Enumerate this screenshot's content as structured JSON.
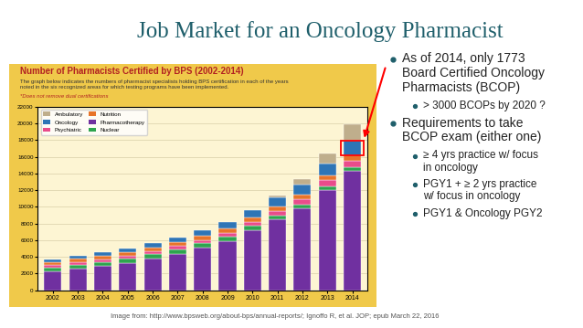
{
  "title": "Job Market for an Oncology Pharmacist",
  "chart_data": {
    "type": "bar",
    "stacked": true,
    "title": "Number of Pharmacists Certified by BPS (2002-2014)",
    "subtitle": "The graph below indicates the numbers of pharmacist specialists holding BPS certification in each of the years noted in the six recognized areas for which testing programs have been implemented.",
    "annotations": [
      "*Does not remove dual certifications"
    ],
    "categories": [
      "2002",
      "2003",
      "2004",
      "2005",
      "2006",
      "2007",
      "2008",
      "2009",
      "2010",
      "2011",
      "2012",
      "2013",
      "2014"
    ],
    "ylim": [
      0,
      22000
    ],
    "yticks": [
      0,
      2000,
      4000,
      6000,
      8000,
      10000,
      12000,
      14000,
      16000,
      18000,
      20000,
      22000
    ],
    "grid": true,
    "legend": "upper left",
    "series": [
      {
        "name": "Pharmacotherapy",
        "color": "#7030a0",
        "values": [
          2300,
          2600,
          2900,
          3300,
          3800,
          4400,
          5100,
          5900,
          7200,
          8500,
          9800,
          12000,
          14300
        ]
      },
      {
        "name": "Nuclear",
        "color": "#2ea44f",
        "values": [
          450,
          470,
          480,
          490,
          500,
          500,
          510,
          520,
          510,
          490,
          480,
          470,
          460
        ]
      },
      {
        "name": "Psychiatric",
        "color": "#e94c8b",
        "values": [
          250,
          280,
          300,
          330,
          360,
          390,
          420,
          460,
          500,
          550,
          620,
          700,
          800
        ]
      },
      {
        "name": "Nutrition",
        "color": "#e8742a",
        "values": [
          400,
          420,
          430,
          440,
          450,
          460,
          480,
          500,
          520,
          540,
          570,
          600,
          620
        ]
      },
      {
        "name": "Oncology",
        "color": "#2e75b6",
        "values": [
          300,
          360,
          420,
          480,
          530,
          600,
          680,
          780,
          900,
          1050,
          1200,
          1450,
          1773
        ]
      },
      {
        "name": "Ambulatory",
        "color": "#bfae8c",
        "values": [
          null,
          null,
          null,
          null,
          null,
          null,
          null,
          null,
          null,
          200,
          700,
          1196,
          1900
        ]
      }
    ]
  },
  "bullets": [
    {
      "text": "As of 2014, only 1773 Board Certified Oncology Pharmacists (BCOP)",
      "sub": [
        "> 3000 BCOPs by 2020 ?"
      ]
    },
    {
      "text": "Requirements to take BCOP exam (either one)",
      "sub": [
        "≥ 4 yrs practice w/ focus in oncology",
        "PGY1 + ≥ 2 yrs practice w/ focus in oncology",
        "PGY1 & Oncology PGY2"
      ]
    }
  ],
  "source": "Image from: http://www.bpsweb.org/about-bps/annual-reports/; Ignoffo R, et al. JOP; epub March 22, 2016"
}
